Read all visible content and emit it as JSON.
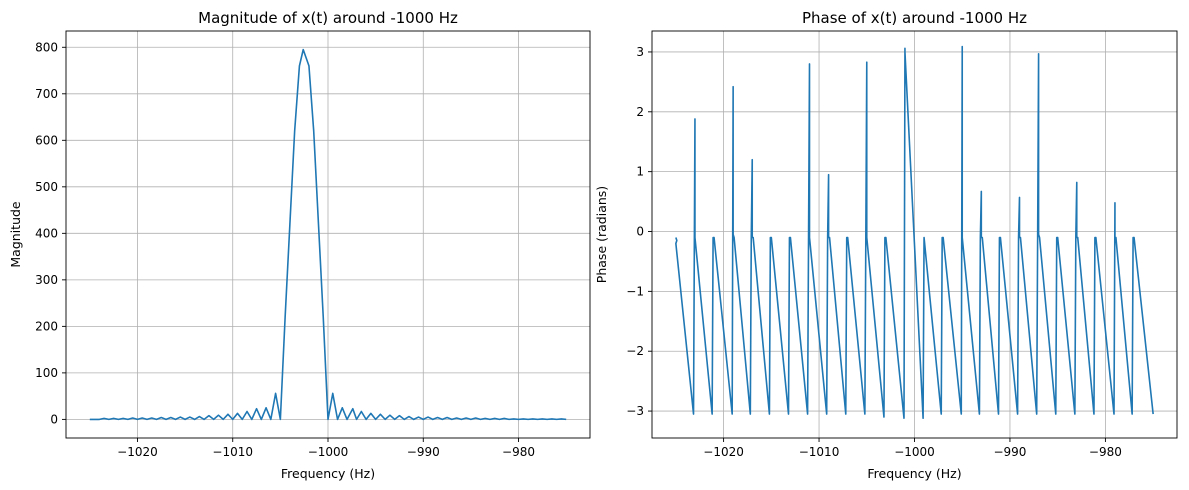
{
  "chart_data": [
    {
      "type": "line",
      "title": "Magnitude of x(t) around -1000 Hz",
      "xlabel": "Frequency (Hz)",
      "ylabel": "Magnitude",
      "xlim": [
        -1027.5,
        -972.5
      ],
      "ylim": [
        -40,
        835
      ],
      "xticks": [
        -1020,
        -1010,
        -1000,
        -990,
        -980
      ],
      "xtick_labels": [
        "−1020",
        "−1010",
        "−1000",
        "−990",
        "−980"
      ],
      "yticks": [
        0,
        100,
        200,
        300,
        400,
        500,
        600,
        700,
        800
      ],
      "ytick_labels": [
        "0",
        "100",
        "200",
        "300",
        "400",
        "500",
        "600",
        "700",
        "800"
      ],
      "grid": true,
      "color": "#1f77b4",
      "series": [
        {
          "x": [
            -1025,
            -1024,
            -1023.5,
            -1023,
            -1022.5,
            -1022,
            -1021.5,
            -1021,
            -1020.5,
            -1020,
            -1019.5,
            -1019,
            -1018.5,
            -1018,
            -1017.5,
            -1017,
            -1016.5,
            -1016,
            -1015.5,
            -1015,
            -1014.5,
            -1014,
            -1013.5,
            -1013,
            -1012.5,
            -1012,
            -1011.5,
            -1011,
            -1010.5,
            -1010,
            -1009.5,
            -1009,
            -1008.5,
            -1008,
            -1007.5,
            -1007,
            -1006.5,
            -1006,
            -1005.5,
            -1005,
            -1004.5,
            -1004,
            -1003.5,
            -1003,
            -1002.6,
            -1002,
            -1001.5,
            -1001,
            -1000.5,
            -1000,
            -999.5,
            -999,
            -998.5,
            -998,
            -997.4,
            -997,
            -996.5,
            -996,
            -995.5,
            -995,
            -994.5,
            -994,
            -993.5,
            -993,
            -992.5,
            -992,
            -991.5,
            -991,
            -990.5,
            -990,
            -989.5,
            -989,
            -988.5,
            -988,
            -987.5,
            -987,
            -986.5,
            -986,
            -985.5,
            -985,
            -984.5,
            -984,
            -983.5,
            -983,
            -982.5,
            -982,
            -981.5,
            -981,
            -980.5,
            -980,
            -979.5,
            -979,
            -978.5,
            -978,
            -977.5,
            -977,
            -976.5,
            -976,
            -975.5,
            -975
          ],
          "y": [
            0,
            0,
            2,
            0,
            2,
            0,
            2,
            0,
            3,
            0,
            3,
            0,
            3,
            0,
            4,
            0,
            4,
            0,
            5,
            0,
            5,
            0,
            6,
            0,
            8,
            0,
            9,
            0,
            11,
            0,
            13,
            0,
            17,
            0,
            23,
            0,
            25,
            0,
            56,
            0,
            220,
            420,
            620,
            760,
            795,
            760,
            620,
            420,
            220,
            0,
            56,
            0,
            25,
            0,
            23,
            0,
            17,
            0,
            13,
            0,
            11,
            0,
            9,
            0,
            8,
            0,
            6,
            0,
            5,
            0,
            5,
            0,
            4,
            0,
            4,
            0,
            3,
            0,
            3,
            0,
            3,
            0,
            2,
            0,
            2,
            0,
            2,
            0,
            1,
            0,
            1,
            0,
            1,
            0,
            1,
            0,
            1,
            0,
            1,
            0
          ]
        }
      ]
    },
    {
      "type": "line",
      "title": "Phase of x(t) around -1000 Hz",
      "xlabel": "Frequency (Hz)",
      "ylabel": "Phase (radians)",
      "xlim": [
        -1027.5,
        -972.5
      ],
      "ylim": [
        -3.45,
        3.35
      ],
      "xticks": [
        -1020,
        -1010,
        -1000,
        -990,
        -980
      ],
      "xtick_labels": [
        "−1020",
        "−1010",
        "−1000",
        "−990",
        "−980"
      ],
      "yticks": [
        -3,
        -2,
        -1,
        0,
        1,
        2,
        3
      ],
      "ytick_labels": [
        "−3",
        "−2",
        "−1",
        "0",
        "1",
        "2",
        "3"
      ],
      "grid": true,
      "color": "#1f77b4",
      "series": [
        {
          "x": [
            -1025,
            -1024.9,
            -1025,
            -1023.15,
            -1023,
            -1023,
            -1023,
            -1021.2,
            -1021.1,
            -1021,
            -1019.1,
            -1019,
            -1019,
            -1018.9,
            -1017.2,
            -1017.1,
            -1017,
            -1017,
            -1016.9,
            -1015.2,
            -1015.1,
            -1015,
            -1013.2,
            -1013.1,
            -1013,
            -1011.2,
            -1011,
            -1011,
            -1011,
            -1009.2,
            -1009.1,
            -1009,
            -1009,
            -1008.9,
            -1007.2,
            -1007.1,
            -1007,
            -1005.2,
            -1005,
            -1005,
            -1005,
            -1003.2,
            -1003.1,
            -1003,
            -1001.1,
            -1001,
            -1001,
            -999.1,
            -999,
            -997.2,
            -997.1,
            -997,
            -995.1,
            -995,
            -995,
            -995,
            -993.2,
            -993.1,
            -993,
            -993,
            -992.9,
            -991.2,
            -991.1,
            -991,
            -989.2,
            -989.1,
            -989,
            -989,
            -988.9,
            -987.2,
            -987.1,
            -987,
            -987,
            -986.9,
            -985.2,
            -985.1,
            -985,
            -983.2,
            -983.1,
            -983,
            -983,
            -982.9,
            -981.2,
            -981.1,
            -981,
            -979.1,
            -979,
            -979,
            -978.9,
            -977.2,
            -977.1,
            -977,
            -975
          ],
          "y": [
            -0.1,
            -0.15,
            -0.2,
            -3.05,
            1.88,
            -0.1,
            -0.1,
            -3.05,
            -0.1,
            -0.1,
            -3.05,
            2.42,
            -0.05,
            -0.1,
            -3.05,
            -0.1,
            1.2,
            -0.1,
            -0.1,
            -3.05,
            -0.1,
            -0.1,
            -3.05,
            -0.1,
            -0.1,
            -3.05,
            2.8,
            -0.05,
            -0.1,
            -3.05,
            -0.1,
            0.95,
            -0.1,
            -0.1,
            -3.05,
            -0.1,
            -0.1,
            -3.05,
            2.83,
            -0.05,
            -0.1,
            -3.1,
            -0.1,
            -0.1,
            -3.12,
            3.06,
            3.0,
            -3.12,
            -0.1,
            -3.05,
            -0.1,
            -0.1,
            -3.05,
            3.09,
            3.02,
            -0.1,
            -3.05,
            -0.1,
            0.67,
            -0.1,
            -0.1,
            -3.05,
            -0.1,
            -0.1,
            -3.05,
            -0.1,
            0.57,
            -0.1,
            -0.1,
            -3.05,
            -0.1,
            2.97,
            -0.05,
            -0.1,
            -3.05,
            -0.1,
            -0.1,
            -3.05,
            -0.1,
            0.82,
            -0.1,
            -0.1,
            -3.05,
            -0.1,
            -0.1,
            -3.05,
            0.48,
            -0.1,
            -0.1,
            -3.05,
            -0.1,
            -0.1,
            -3.05
          ]
        }
      ]
    }
  ]
}
